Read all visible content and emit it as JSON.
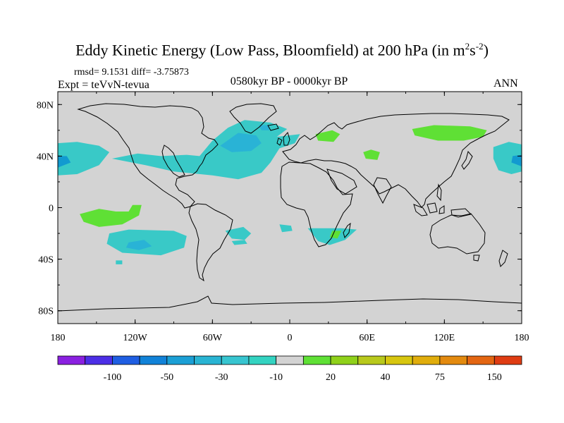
{
  "title": {
    "main": "Eddy Kinetic Energy (Low Pass, Bloomfield) at 200 hPa (in m",
    "sup1": "2",
    "mid": "s",
    "sup2": "-2",
    "end": ")"
  },
  "stats": "rmsd= 9.1531  diff= -3.75873",
  "expt": "Expt = teVvN-tevua",
  "period": "0580kyr BP - 0000kyr BP",
  "season": "ANN",
  "map_data": {
    "lat_ticks": [
      {
        "value": 80,
        "label": "80N"
      },
      {
        "value": 40,
        "label": "40N"
      },
      {
        "value": 0,
        "label": "0"
      },
      {
        "value": -40,
        "label": "40S"
      },
      {
        "value": -80,
        "label": "80S"
      }
    ],
    "lon_ticks": [
      {
        "value": -180,
        "label": "180"
      },
      {
        "value": -120,
        "label": "120W"
      },
      {
        "value": -60,
        "label": "60W"
      },
      {
        "value": 0,
        "label": "0"
      },
      {
        "value": 60,
        "label": "60E"
      },
      {
        "value": 120,
        "label": "120E"
      },
      {
        "value": 180,
        "label": "180"
      }
    ],
    "lat_range": [
      -90,
      90
    ],
    "lon_range": [
      -180,
      180
    ],
    "background_color": "#d3d3d3",
    "anomaly_regions": [
      {
        "name": "north-pacific-west",
        "color": "#39c9c7",
        "poly": [
          [
            -180,
            50
          ],
          [
            -165,
            51
          ],
          [
            -148,
            48
          ],
          [
            -140,
            43
          ],
          [
            -148,
            33
          ],
          [
            -165,
            26
          ],
          [
            -180,
            25
          ]
        ]
      },
      {
        "name": "north-pacific-west-core",
        "color": "#129ad0",
        "poly": [
          [
            -180,
            40
          ],
          [
            -173,
            40
          ],
          [
            -170,
            35
          ],
          [
            -180,
            31
          ]
        ]
      },
      {
        "name": "north-pacific-east",
        "color": "#39c9c7",
        "poly": [
          [
            180,
            49
          ],
          [
            170,
            51
          ],
          [
            158,
            47
          ],
          [
            158,
            38
          ],
          [
            162,
            29
          ],
          [
            172,
            26
          ],
          [
            180,
            28
          ]
        ]
      },
      {
        "name": "north-pacific-east-core",
        "color": "#129ad0",
        "poly": [
          [
            180,
            41
          ],
          [
            173,
            40
          ],
          [
            172,
            35
          ],
          [
            180,
            32
          ]
        ]
      },
      {
        "name": "north-atlantic",
        "color": "#39c9c7",
        "poly": [
          [
            -138,
            38
          ],
          [
            -118,
            42
          ],
          [
            -100,
            40
          ],
          [
            -80,
            41
          ],
          [
            -70,
            40
          ],
          [
            -60,
            52
          ],
          [
            -48,
            62
          ],
          [
            -35,
            68
          ],
          [
            -15,
            66
          ],
          [
            -2,
            61
          ],
          [
            -10,
            55
          ],
          [
            8,
            57
          ],
          [
            4,
            50
          ],
          [
            -8,
            46
          ],
          [
            -15,
            35
          ],
          [
            -22,
            27
          ],
          [
            -40,
            22
          ],
          [
            -60,
            25
          ],
          [
            -90,
            28
          ],
          [
            -112,
            33
          ]
        ]
      },
      {
        "name": "north-atlantic-core",
        "color": "#29b3d6",
        "poly": [
          [
            -54,
            48
          ],
          [
            -40,
            58
          ],
          [
            -26,
            56
          ],
          [
            -22,
            50
          ],
          [
            -30,
            44
          ],
          [
            -45,
            43
          ]
        ]
      },
      {
        "name": "north-atlantic-core-2",
        "color": "#29b3d6",
        "poly": [
          [
            -24,
            64
          ],
          [
            -16,
            64
          ],
          [
            -16,
            60
          ],
          [
            -22,
            60
          ]
        ]
      },
      {
        "name": "north-asia-green",
        "color": "#5fe035",
        "poly": [
          [
            95,
            61
          ],
          [
            112,
            64
          ],
          [
            140,
            63
          ],
          [
            153,
            60
          ],
          [
            150,
            55
          ],
          [
            135,
            52
          ],
          [
            115,
            52
          ],
          [
            97,
            56
          ]
        ]
      },
      {
        "name": "ural-green",
        "color": "#5fe035",
        "poly": [
          [
            20,
            57
          ],
          [
            33,
            60
          ],
          [
            39,
            57
          ],
          [
            34,
            51
          ],
          [
            22,
            52
          ]
        ]
      },
      {
        "name": "central-asia-green",
        "color": "#5fe035",
        "poly": [
          [
            57,
            43
          ],
          [
            63,
            45
          ],
          [
            70,
            43
          ],
          [
            68,
            37
          ],
          [
            59,
            38
          ]
        ]
      },
      {
        "name": "tropical-pacific-green",
        "color": "#5fe035",
        "poly": [
          [
            -163,
            -5
          ],
          [
            -148,
            -1
          ],
          [
            -135,
            -3
          ],
          [
            -125,
            -3
          ],
          [
            -122,
            2
          ],
          [
            -115,
            2
          ],
          [
            -117,
            -6
          ],
          [
            -130,
            -13
          ],
          [
            -148,
            -15
          ],
          [
            -160,
            -11
          ]
        ]
      },
      {
        "name": "south-pacific",
        "color": "#39c9c7",
        "poly": [
          [
            -140,
            -20
          ],
          [
            -125,
            -17
          ],
          [
            -90,
            -18
          ],
          [
            -80,
            -22
          ],
          [
            -82,
            -31
          ],
          [
            -100,
            -37
          ],
          [
            -130,
            -35
          ],
          [
            -142,
            -28
          ]
        ]
      },
      {
        "name": "south-pacific-core",
        "color": "#29b3d6",
        "poly": [
          [
            -125,
            -27
          ],
          [
            -113,
            -25
          ],
          [
            -107,
            -30
          ],
          [
            -117,
            -33
          ],
          [
            -127,
            -31
          ]
        ]
      },
      {
        "name": "south-pacific-small",
        "color": "#39c9c7",
        "poly": [
          [
            -135,
            -41
          ],
          [
            -130,
            -41
          ],
          [
            -130,
            -44
          ],
          [
            -135,
            -44
          ]
        ]
      },
      {
        "name": "south-atlantic-small",
        "color": "#39c9c7",
        "poly": [
          [
            -50,
            -18
          ],
          [
            -36,
            -15
          ],
          [
            -30,
            -20
          ],
          [
            -35,
            -25
          ],
          [
            -45,
            -24
          ]
        ]
      },
      {
        "name": "south-atlantic-small-2",
        "color": "#39c9c7",
        "poly": [
          [
            -45,
            -26
          ],
          [
            -35,
            -25
          ],
          [
            -33,
            -28
          ],
          [
            -43,
            -29
          ]
        ]
      },
      {
        "name": "tropical-atlantic-small",
        "color": "#39c9c7",
        "poly": [
          [
            -8,
            -13
          ],
          [
            1,
            -14
          ],
          [
            2,
            -18
          ],
          [
            -6,
            -19
          ]
        ]
      },
      {
        "name": "africa-south",
        "color": "#39c9c7",
        "poly": [
          [
            14,
            -16
          ],
          [
            25,
            -16
          ],
          [
            40,
            -16
          ],
          [
            52,
            -17
          ],
          [
            43,
            -25
          ],
          [
            31,
            -29
          ],
          [
            22,
            -26
          ]
        ]
      },
      {
        "name": "africa-south-green",
        "color": "#5fe035",
        "poly": [
          [
            33,
            -18
          ],
          [
            40,
            -18
          ],
          [
            37,
            -24
          ],
          [
            31,
            -23
          ]
        ]
      }
    ],
    "colorbar": {
      "colors": [
        "#8a20e0",
        "#4c2ee6",
        "#1f5ee2",
        "#1182d8",
        "#1b9fd5",
        "#29b4d3",
        "#37c5d0",
        "#33d3c1",
        "#d3d3d3",
        "#5fe035",
        "#8fd11a",
        "#b8c91c",
        "#d7c60f",
        "#e0ad0c",
        "#e38a0f",
        "#e36612",
        "#df3c13"
      ],
      "labels": [
        "-100",
        "-50",
        "-30",
        "-10",
        "20",
        "40",
        "75",
        "150"
      ]
    }
  }
}
